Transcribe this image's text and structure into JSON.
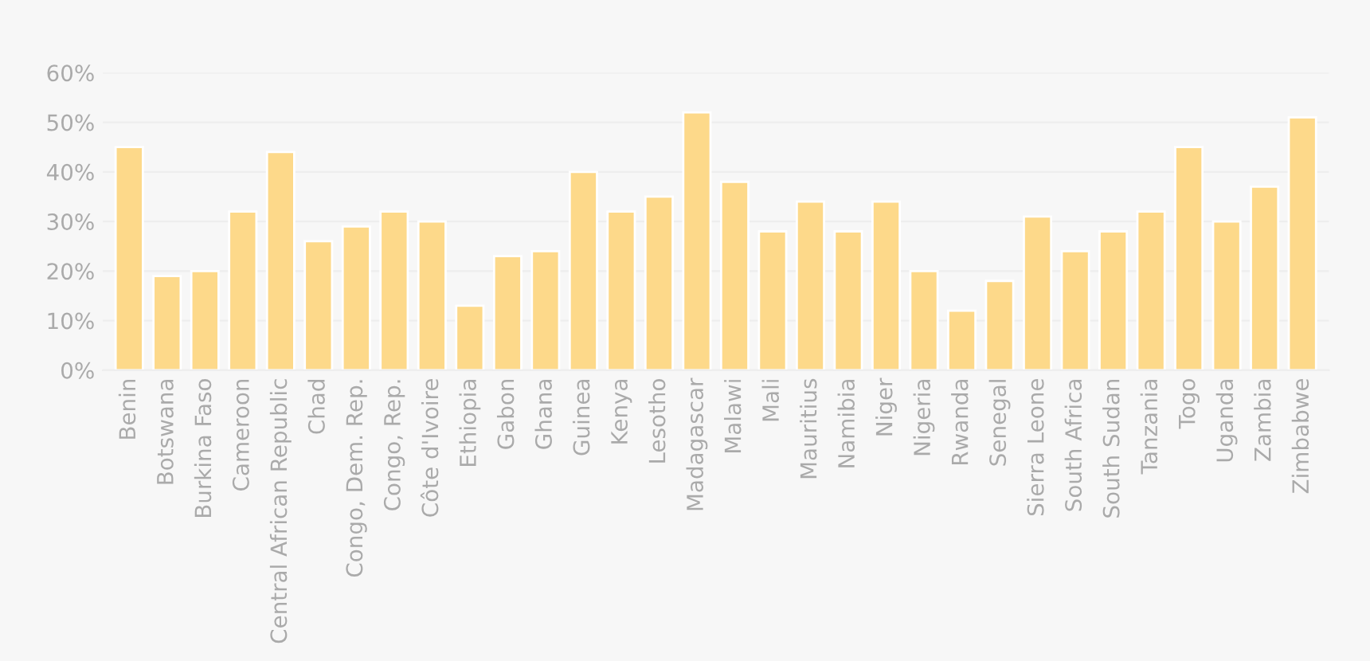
{
  "chart_data": {
    "type": "bar",
    "categories": [
      "Benin",
      "Botswana",
      "Burkina Faso",
      "Cameroon",
      "Central African Republic",
      "Chad",
      "Congo, Dem. Rep.",
      "Congo, Rep.",
      "Côte d'Ivoire",
      "Ethiopia",
      "Gabon",
      "Ghana",
      "Guinea",
      "Kenya",
      "Lesotho",
      "Madagascar",
      "Malawi",
      "Mali",
      "Mauritius",
      "Namibia",
      "Niger",
      "Nigeria",
      "Rwanda",
      "Senegal",
      "Sierra Leone",
      "South Africa",
      "South Sudan",
      "Tanzania",
      "Togo",
      "Uganda",
      "Zambia",
      "Zimbabwe"
    ],
    "values": [
      45,
      19,
      20,
      32,
      44,
      26,
      29,
      32,
      30,
      13,
      23,
      24,
      40,
      32,
      35,
      52,
      38,
      28,
      34,
      28,
      34,
      20,
      12,
      18,
      31,
      24,
      28,
      32,
      45,
      30,
      37,
      51
    ],
    "color": "#fdd98a",
    "ylim": [
      0,
      60
    ],
    "yticks": [
      {
        "value": 0,
        "label": "0%"
      },
      {
        "value": 10,
        "label": "10%"
      },
      {
        "value": 20,
        "label": "20%"
      },
      {
        "value": 30,
        "label": "30%"
      },
      {
        "value": 40,
        "label": "40%"
      },
      {
        "value": 50,
        "label": "50%"
      },
      {
        "value": 60,
        "label": "60%"
      }
    ],
    "grid": "y"
  }
}
